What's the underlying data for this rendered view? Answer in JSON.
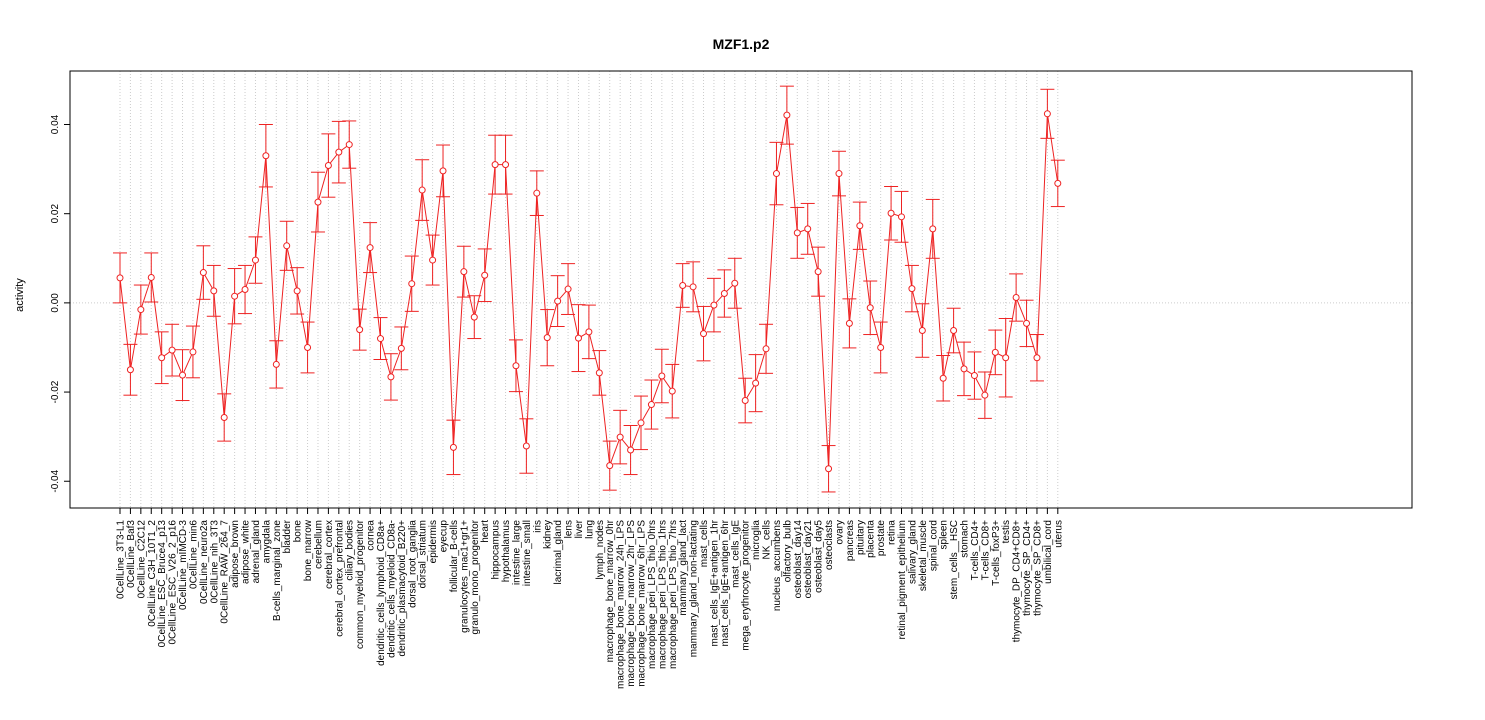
{
  "chart_data": {
    "type": "line",
    "title": "MZF1.p2",
    "xlabel": "",
    "ylabel": "activity",
    "ylim": [
      -0.046,
      0.052
    ],
    "yticks": [
      -0.04,
      -0.02,
      0.0,
      0.02,
      0.04
    ],
    "ytick_labels": [
      "-0.04",
      "-0.02",
      "0.00",
      "0.02",
      "0.04"
    ],
    "grid": "dotted vertical lines at each category, dotted horizontal line at 0",
    "colors": {
      "series": "#ee2222",
      "grid": "#cccccc",
      "axis": "#000000"
    },
    "categories": [
      "0CellLine_3T3-L1",
      "0CellLine_Baf3",
      "0CellLine_C2C12",
      "0CellLine_C3H_10T1_2",
      "0CellLine_ESC_Bruce4_p13",
      "0CellLine_ESC_V26_2_p16",
      "0CellLine_mIMCD-3",
      "0CellLine_min6",
      "0CellLine_neuro2a",
      "0CellLine_nih_3T3",
      "0CellLine_RAW_264_7",
      "adipose_brown",
      "adipose_white",
      "adrenal_gland",
      "amygdala",
      "B-cells_marginal_zone",
      "bladder",
      "bone",
      "bone_marrow",
      "cerebellum",
      "cerebral_cortex",
      "cerebral_cortex_prefrontal",
      "ciliary_bodies",
      "common_myeloid_progenitor",
      "cornea",
      "dendritic_cells_lymphoid_CD8a+",
      "dendritic_cells_myeloid_CD8a-",
      "dendritic_plasmacytoid_B220+",
      "dorsal_root_ganglia",
      "dorsal_striatum",
      "epidermis",
      "eyecup",
      "follicular_B-cells",
      "granulocytes_mac1+gr1+",
      "granulo_mono_progenitor",
      "heart",
      "hippocampus",
      "hypothalamus",
      "intestine_large",
      "intestine_small",
      "iris",
      "kidney",
      "lacrimal_gland",
      "lens",
      "liver",
      "lung",
      "lymph_nodes",
      "macrophage_bone_marrow_0hr",
      "macrophage_bone_marrow_24h_LPS",
      "macrophage_bone_marrow_2hr_LPS",
      "macrophage_bone_marrow_6hr_LPS",
      "macrophage_peri_LPS_thio_0hrs",
      "macrophage_peri_LPS_thio_1hrs",
      "macrophage_peri_LPS_thio_7hrs",
      "mammary_gland_lact",
      "mammary_gland_non-lactating",
      "mast_cells",
      "mast_cells_IgE+antigen_1hr",
      "mast_cells_IgE+antigen_6hr",
      "mast_cells_IgE",
      "mega_erythrocyte_progenitor",
      "microglia",
      "NK_cells",
      "nucleus_accumbens",
      "olfactory_bulb",
      "osteoblast_day14",
      "osteoblast_day21",
      "osteoblast_day5",
      "osteoclasts",
      "ovary",
      "pancreas",
      "pituitary",
      "placenta",
      "prostate",
      "retina",
      "retinal_pigment_epithelium",
      "salivary_gland",
      "skeletal_muscle",
      "spinal_cord",
      "spleen",
      "stem_cells__HSC",
      "stomach",
      "T-cells_CD4+",
      "T-cells_CD8+",
      "T-cells_foxP3+",
      "testis",
      "thymocyte_DP_CD4+CD8+",
      "thymocyte_SP_CD4+",
      "thymocyte_SP_CD8+",
      "umbilical_cord",
      "uterus"
    ],
    "series": [
      {
        "values": [
          0.0056,
          -0.015,
          -0.0015,
          0.0057,
          -0.0123,
          -0.0106,
          -0.0162,
          -0.011,
          0.0068,
          0.0027,
          -0.0257,
          0.0015,
          0.003,
          0.0096,
          0.033,
          -0.0138,
          0.0128,
          0.0027,
          -0.01,
          0.0226,
          0.0308,
          0.0338,
          0.0355,
          -0.006,
          0.0124,
          -0.008,
          -0.0166,
          -0.0102,
          0.0043,
          0.0253,
          0.0096,
          0.0296,
          -0.0324,
          0.007,
          -0.0032,
          0.0062,
          0.031,
          0.031,
          -0.0141,
          -0.0321,
          0.0246,
          -0.0078,
          0.0004,
          0.0031,
          -0.0079,
          -0.0065,
          -0.0157,
          -0.0365,
          -0.0301,
          -0.033,
          -0.0269,
          -0.0228,
          -0.0164,
          -0.0198,
          0.0039,
          0.0036,
          -0.0069,
          -0.0005,
          0.0021,
          0.0044,
          -0.0219,
          -0.018,
          -0.0103,
          0.029,
          0.0421,
          0.0157,
          0.0166,
          0.007,
          -0.0372,
          0.029,
          -0.0046,
          0.0173,
          -0.0011,
          -0.01,
          0.0201,
          0.0193,
          0.0032,
          -0.0062,
          0.0166,
          -0.0169,
          -0.0062,
          -0.0148,
          -0.0163,
          -0.0207,
          -0.0111,
          -0.0123,
          0.0012,
          -0.0046,
          -0.0123,
          0.0424,
          0.0268
        ],
        "errors": [
          0.0056,
          0.0057,
          0.0055,
          0.0055,
          0.0058,
          0.0058,
          0.0057,
          0.0058,
          0.006,
          0.0057,
          0.0053,
          0.0062,
          0.0054,
          0.0052,
          0.007,
          0.0053,
          0.0055,
          0.0052,
          0.0057,
          0.0067,
          0.0071,
          0.0069,
          0.0053,
          0.0046,
          0.0056,
          0.0047,
          0.0052,
          0.0048,
          0.0062,
          0.0068,
          0.0056,
          0.0058,
          0.0061,
          0.0057,
          0.0048,
          0.0059,
          0.0066,
          0.0066,
          0.0058,
          0.0061,
          0.005,
          0.0063,
          0.0057,
          0.0057,
          0.0075,
          0.006,
          0.005,
          0.0055,
          0.006,
          0.0055,
          0.006,
          0.0055,
          0.006,
          0.006,
          0.0049,
          0.0056,
          0.0061,
          0.006,
          0.0053,
          0.0056,
          0.005,
          0.0064,
          0.0055,
          0.007,
          0.0065,
          0.0057,
          0.0057,
          0.0055,
          0.0052,
          0.005,
          0.0055,
          0.0053,
          0.006,
          0.0057,
          0.006,
          0.0057,
          0.0052,
          0.006,
          0.0066,
          0.0051,
          0.005,
          0.006,
          0.0053,
          0.0052,
          0.005,
          0.0088,
          0.0053,
          0.0052,
          0.0052,
          0.0055,
          0.0052
        ]
      }
    ]
  }
}
